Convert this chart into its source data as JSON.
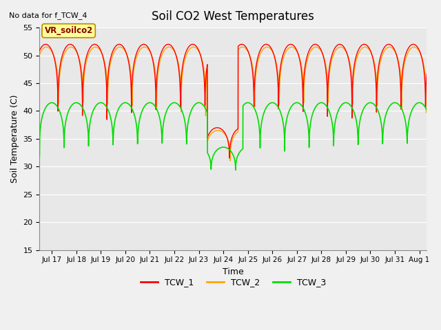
{
  "title": "Soil CO2 West Temperatures",
  "no_data_label": "No data for f_TCW_4",
  "vr_label": "VR_soilco2",
  "xlabel": "Time",
  "ylabel": "Soil Temperature (C)",
  "ylim": [
    15,
    55
  ],
  "xlim_days": [
    16.5,
    32.3
  ],
  "tick_days": [
    17,
    18,
    19,
    20,
    21,
    22,
    23,
    24,
    25,
    26,
    27,
    28,
    29,
    30,
    31,
    32
  ],
  "tick_labels": [
    "Jul 17",
    "Jul 18",
    "Jul 19",
    "Jul 20",
    "Jul 21",
    "Jul 22",
    "Jul 23",
    "Jul 24",
    "Jul 25",
    "Jul 26",
    "Jul 27",
    "Jul 28",
    "Jul 29",
    "Jul 30",
    "Jul 31",
    "Aug 1"
  ],
  "colors": {
    "TCW_1": "#FF0000",
    "TCW_2": "#FFA500",
    "TCW_3": "#00DD00"
  },
  "background_color": "#E8E8E8",
  "grid_color": "#FFFFFF",
  "annotation_box_facecolor": "#FFFF99",
  "annotation_box_edgecolor": "#BB8800",
  "annotation_text_color": "#880000",
  "figsize": [
    6.4,
    4.8
  ],
  "dpi": 100
}
